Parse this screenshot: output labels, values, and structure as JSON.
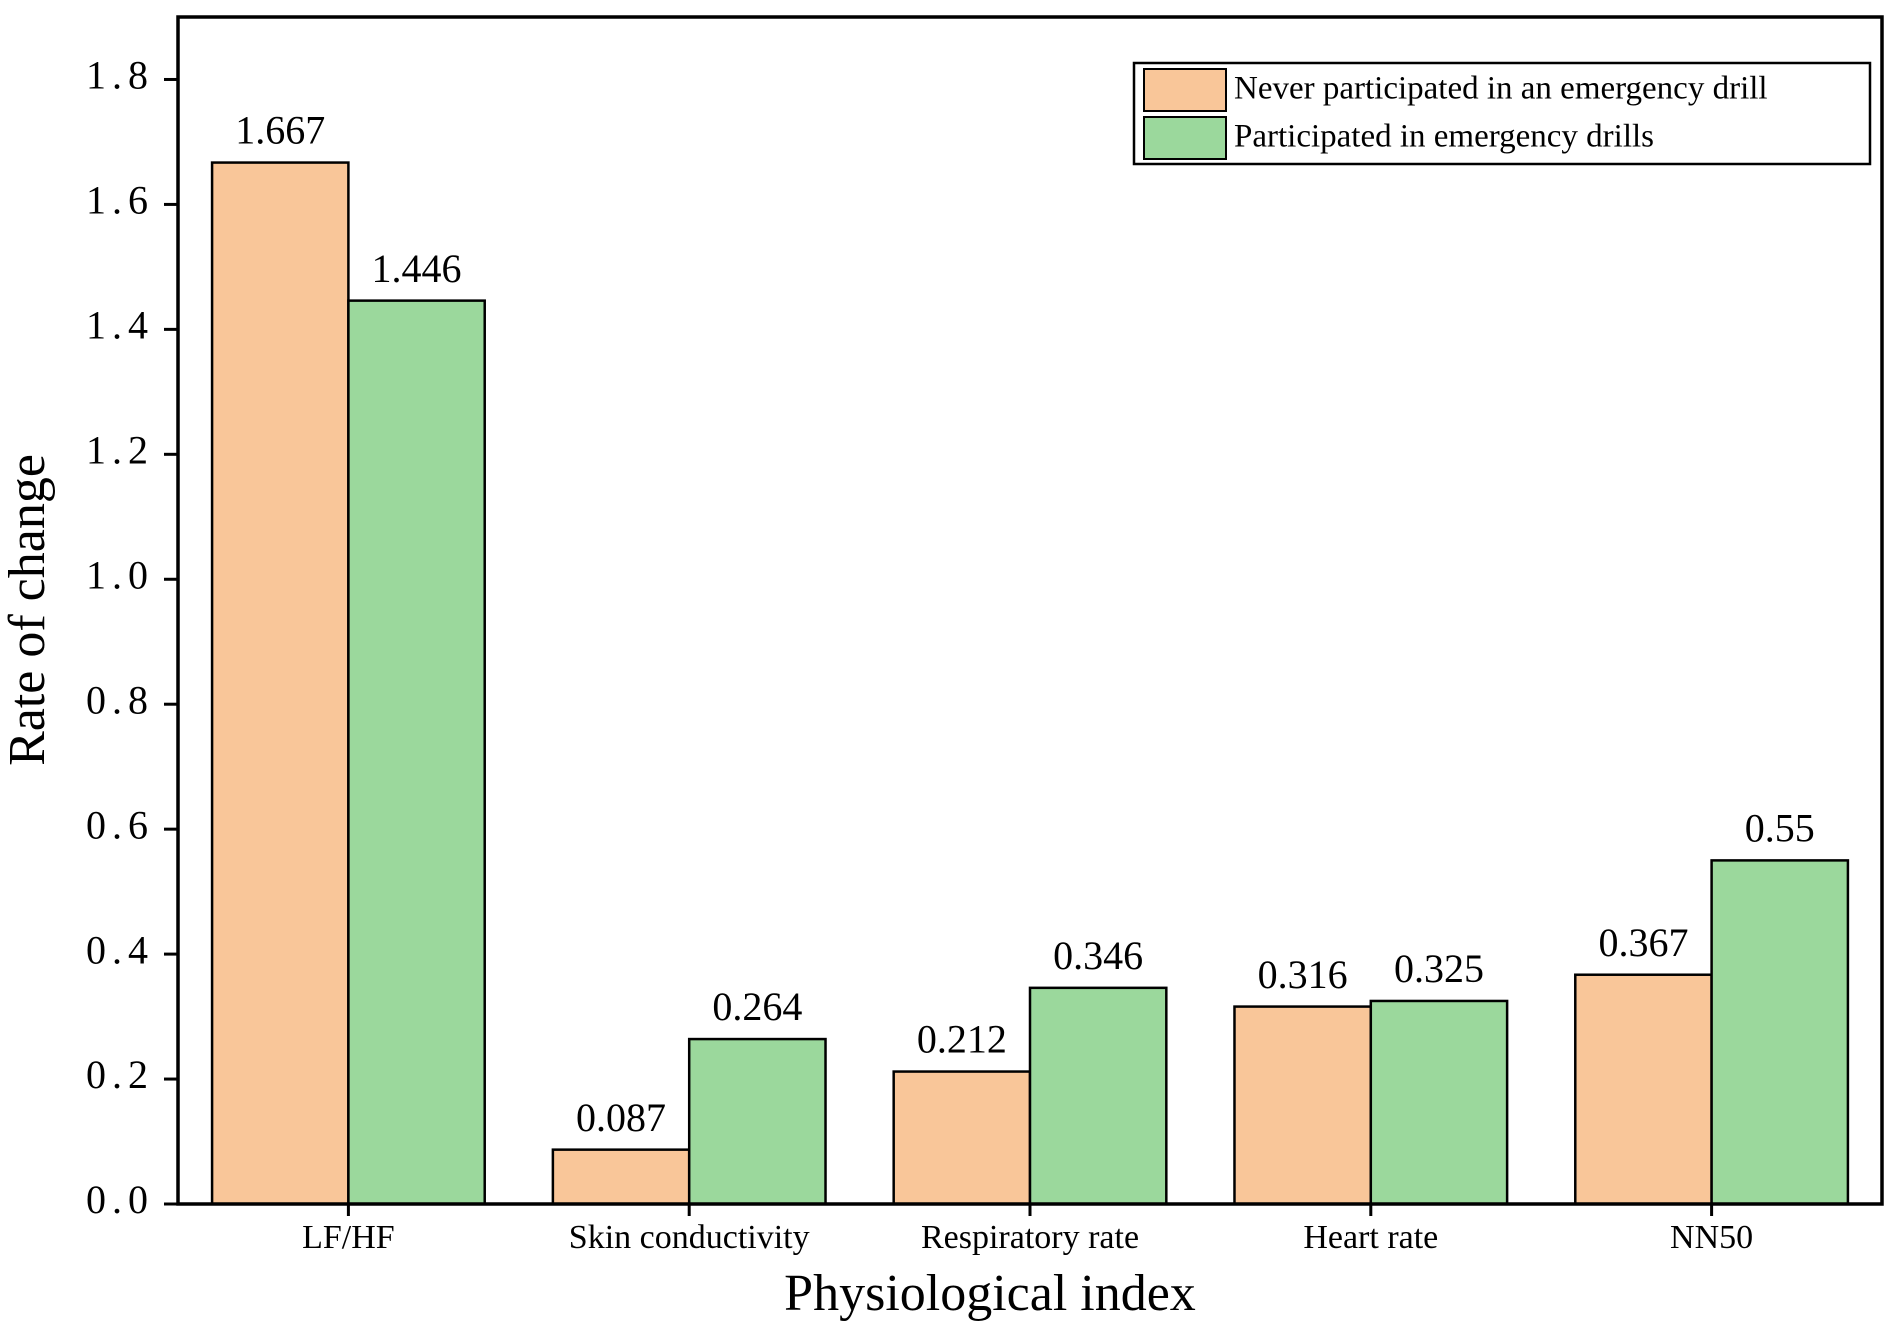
{
  "chart_data": {
    "type": "bar",
    "x_label": "Physiological index",
    "y_label": "Rate of change",
    "categories": [
      "LF/HF",
      "Skin conductivity",
      "Respiratory rate",
      "Heart rate",
      "NN50"
    ],
    "series": [
      {
        "name": "Never participated in an emergency drill",
        "color": "#f9c699",
        "values": [
          1.667,
          0.087,
          0.212,
          0.316,
          0.367
        ]
      },
      {
        "name": "Participated in emergency drills",
        "color": "#9bd89c",
        "values": [
          1.446,
          0.264,
          0.346,
          0.325,
          0.55
        ]
      }
    ],
    "ylim": [
      0,
      1.9
    ],
    "yticks": [
      {
        "value": 0,
        "label": "0.0"
      },
      {
        "value": 0.2,
        "label": "0.2"
      },
      {
        "value": 0.4,
        "label": "0.4"
      },
      {
        "value": 0.6,
        "label": "0.6"
      },
      {
        "value": 0.8,
        "label": "0.8"
      },
      {
        "value": 1.0,
        "label": "1.0"
      },
      {
        "value": 1.2,
        "label": "1.2"
      },
      {
        "value": 1.4,
        "label": "1.4"
      },
      {
        "value": 1.6,
        "label": "1.6"
      },
      {
        "value": 1.8,
        "label": "1.8"
      }
    ],
    "legend": "upper right"
  }
}
